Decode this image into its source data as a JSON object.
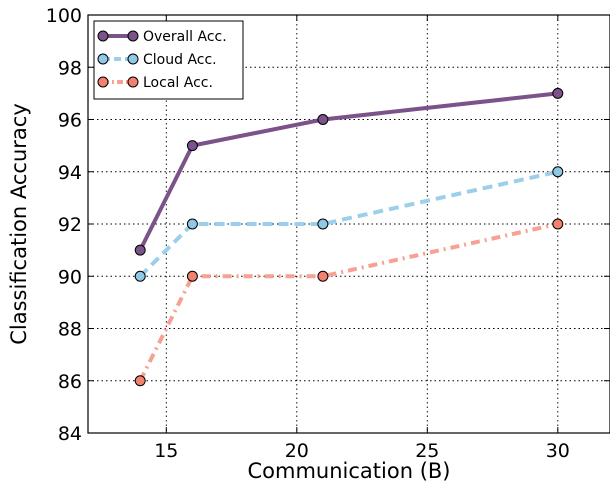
{
  "chart_data": {
    "type": "line",
    "title": "",
    "xlabel": "Communication (B)",
    "ylabel": "Classification Accuracy",
    "xlim": [
      12,
      32
    ],
    "ylim": [
      84,
      100
    ],
    "xticks": [
      15,
      20,
      25,
      30
    ],
    "yticks": [
      84,
      86,
      88,
      90,
      92,
      94,
      96,
      98,
      100
    ],
    "grid": true,
    "legend_position": "top-left",
    "x": [
      14,
      16,
      21,
      30
    ],
    "series": [
      {
        "name": "Overall Acc.",
        "values": [
          91,
          95,
          96,
          97
        ],
        "color": "#7b5289",
        "marker_color": "#7b5289",
        "line_style": "solid"
      },
      {
        "name": "Cloud Acc.",
        "values": [
          90,
          92,
          92,
          94
        ],
        "color": "#9ccfe9",
        "marker_color": "#90c8e6",
        "line_style": "dashed"
      },
      {
        "name": "Local Acc.",
        "values": [
          86,
          90,
          90,
          92
        ],
        "color": "#f6a193",
        "marker_color": "#f2826f",
        "line_style": "dashdot"
      }
    ]
  }
}
